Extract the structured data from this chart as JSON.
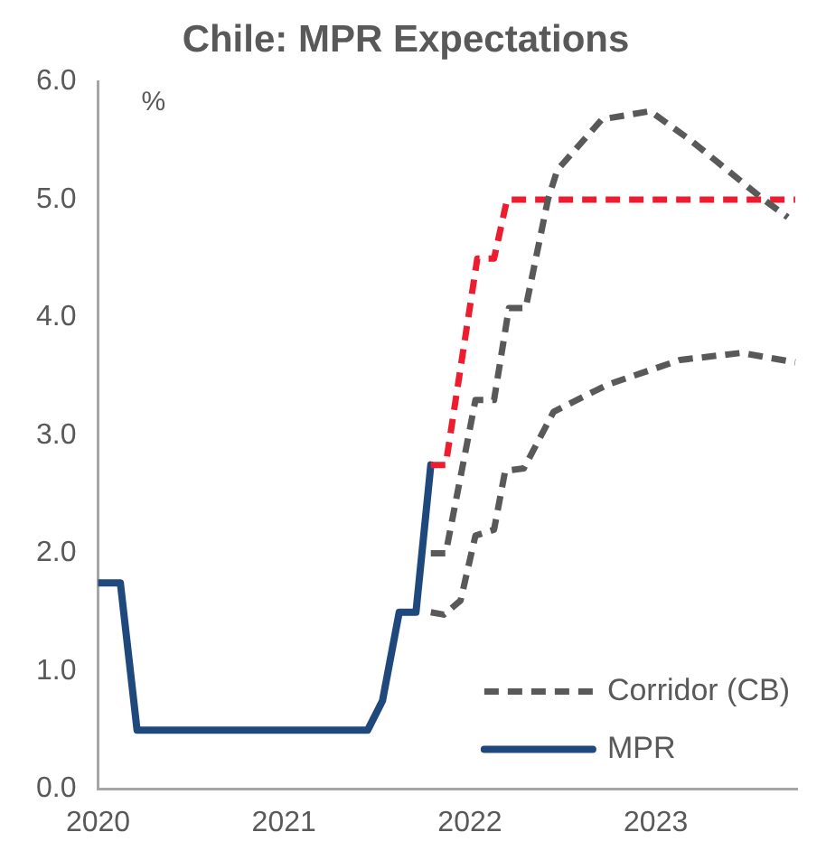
{
  "chart_data": {
    "type": "line",
    "title": "Chile: MPR Expectations",
    "ylabel": "%",
    "xlim": [
      2020,
      2023.76
    ],
    "xticks": [
      2020,
      2021,
      2022,
      2023
    ],
    "ylim": [
      0,
      6
    ],
    "yticks": [
      {
        "value": 0,
        "label": "0.0"
      },
      {
        "value": 1,
        "label": "1.0"
      },
      {
        "value": 2,
        "label": "2.0"
      },
      {
        "value": 3,
        "label": "3.0"
      },
      {
        "value": 4,
        "label": "4.0"
      },
      {
        "value": 5,
        "label": "5.0"
      },
      {
        "value": 6,
        "label": "6.0"
      }
    ],
    "grid": false,
    "legend": "bottom right",
    "marker": "none",
    "series": [
      {
        "name": "Corridor (CB)",
        "color": "#595959",
        "line_style": "dashed",
        "x": [
          2021.79,
          2021.87,
          2022.03,
          2022.13,
          2022.21,
          2022.3,
          2022.42,
          2022.47,
          2022.71,
          2022.97,
          2023.19,
          2023.58,
          2023.71
        ],
        "values": [
          2.0,
          2.0,
          3.3,
          3.3,
          4.08,
          4.08,
          5.0,
          5.25,
          5.68,
          5.75,
          5.5,
          5.0,
          4.85
        ]
      },
      {
        "color": "#595959",
        "line_style": "dashed",
        "x": [
          2021.79,
          2021.86,
          2021.95,
          2022.03,
          2022.13,
          2022.19,
          2022.29,
          2022.45,
          2022.74,
          2023.13,
          2023.46,
          2023.75
        ],
        "values": [
          1.5,
          1.48,
          1.6,
          2.15,
          2.2,
          2.7,
          2.72,
          3.2,
          3.43,
          3.64,
          3.7,
          3.62
        ]
      },
      {
        "color": "#ed1c2e",
        "line_style": "dashed",
        "x": [
          2021.79,
          2021.87,
          2022.04,
          2022.13,
          2022.2,
          2023.75
        ],
        "values": [
          2.75,
          2.75,
          4.5,
          4.5,
          5.0,
          5.0
        ]
      },
      {
        "name": "MPR",
        "color": "#1f497d",
        "line_style": "solid",
        "x": [
          2020.0,
          2020.12,
          2020.21,
          2021.45,
          2021.53,
          2021.62,
          2021.71,
          2021.79
        ],
        "values": [
          1.75,
          1.75,
          0.5,
          0.5,
          0.75,
          1.5,
          1.5,
          2.75
        ]
      }
    ]
  }
}
